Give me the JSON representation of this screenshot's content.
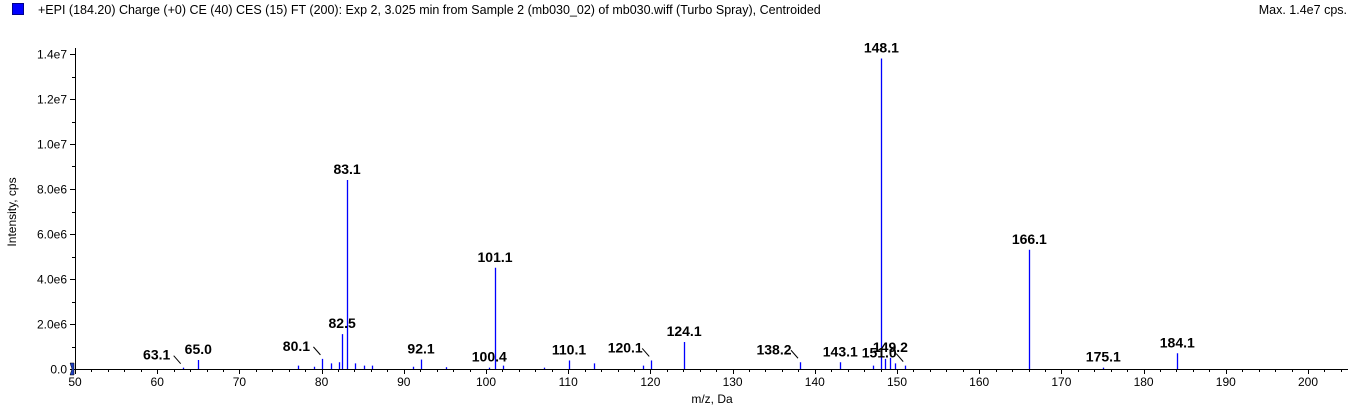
{
  "header": {
    "title": "+EPI (184.20) Charge (+0) CE (40) CES (15) FT (200): Exp 2, 3.025 min from Sample 2 (mb030_02) of mb030.wiff (Turbo Spray), Centroided",
    "max_label": "Max. 1.4e7 cps.",
    "series_color": "#0000ff"
  },
  "chart_data": {
    "type": "bar",
    "title": "",
    "xlabel": "m/z, Da",
    "ylabel": "Intensity, cps",
    "xlim": [
      50,
      205
    ],
    "ylim": [
      0,
      14000000
    ],
    "x_ticks": [
      50,
      60,
      70,
      80,
      90,
      100,
      110,
      120,
      130,
      140,
      150,
      160,
      170,
      180,
      190,
      200
    ],
    "y_ticks": [
      {
        "value": 0,
        "label": "0.0"
      },
      {
        "value": 2000000,
        "label": "2.0e6"
      },
      {
        "value": 4000000,
        "label": "4.0e6"
      },
      {
        "value": 6000000,
        "label": "6.0e6"
      },
      {
        "value": 8000000,
        "label": "8.0e6"
      },
      {
        "value": 10000000,
        "label": "1.0e7"
      },
      {
        "value": 12000000,
        "label": "1.2e7"
      },
      {
        "value": 14000000,
        "label": "1.4e7"
      }
    ],
    "peaks": [
      {
        "mz": 63.1,
        "intensity": 60000
      },
      {
        "mz": 65.0,
        "intensity": 400000
      },
      {
        "mz": 77.1,
        "intensity": 150000
      },
      {
        "mz": 79.1,
        "intensity": 100000
      },
      {
        "mz": 80.1,
        "intensity": 450000
      },
      {
        "mz": 81.1,
        "intensity": 250000
      },
      {
        "mz": 82.1,
        "intensity": 300000
      },
      {
        "mz": 82.5,
        "intensity": 1550000
      },
      {
        "mz": 83.1,
        "intensity": 8400000
      },
      {
        "mz": 84.1,
        "intensity": 250000
      },
      {
        "mz": 85.1,
        "intensity": 150000
      },
      {
        "mz": 86.1,
        "intensity": 150000
      },
      {
        "mz": 91.1,
        "intensity": 100000
      },
      {
        "mz": 92.1,
        "intensity": 420000
      },
      {
        "mz": 95.1,
        "intensity": 80000
      },
      {
        "mz": 100.4,
        "intensity": 60000
      },
      {
        "mz": 101.1,
        "intensity": 4500000
      },
      {
        "mz": 102.1,
        "intensity": 150000
      },
      {
        "mz": 107.1,
        "intensity": 60000
      },
      {
        "mz": 110.1,
        "intensity": 380000
      },
      {
        "mz": 113.1,
        "intensity": 250000
      },
      {
        "mz": 119.1,
        "intensity": 150000
      },
      {
        "mz": 120.1,
        "intensity": 380000
      },
      {
        "mz": 124.1,
        "intensity": 1200000
      },
      {
        "mz": 138.2,
        "intensity": 300000
      },
      {
        "mz": 143.1,
        "intensity": 300000
      },
      {
        "mz": 147.1,
        "intensity": 150000
      },
      {
        "mz": 148.1,
        "intensity": 13800000
      },
      {
        "mz": 148.6,
        "intensity": 450000
      },
      {
        "mz": 149.2,
        "intensity": 500000
      },
      {
        "mz": 149.8,
        "intensity": 250000
      },
      {
        "mz": 151.0,
        "intensity": 150000
      },
      {
        "mz": 166.1,
        "intensity": 5300000
      },
      {
        "mz": 175.1,
        "intensity": 60000
      },
      {
        "mz": 184.1,
        "intensity": 700000
      }
    ],
    "annotations": [
      {
        "mz": 63.1,
        "label": "63.1",
        "leader": true
      },
      {
        "mz": 65.0,
        "label": "65.0",
        "leader": false
      },
      {
        "mz": 80.1,
        "label": "80.1",
        "leader": true
      },
      {
        "mz": 82.5,
        "label": "82.5",
        "leader": false
      },
      {
        "mz": 83.1,
        "label": "83.1",
        "leader": false
      },
      {
        "mz": 92.1,
        "label": "92.1",
        "leader": false
      },
      {
        "mz": 100.4,
        "label": "100.4",
        "leader": false
      },
      {
        "mz": 101.1,
        "label": "101.1",
        "leader": false
      },
      {
        "mz": 110.1,
        "label": "110.1",
        "leader": false
      },
      {
        "mz": 120.1,
        "label": "120.1",
        "leader": true
      },
      {
        "mz": 124.1,
        "label": "124.1",
        "leader": false
      },
      {
        "mz": 138.2,
        "label": "138.2",
        "leader": true
      },
      {
        "mz": 143.1,
        "label": "143.1",
        "leader": false
      },
      {
        "mz": 148.1,
        "label": "148.1",
        "leader": false
      },
      {
        "mz": 149.2,
        "label": "149.2",
        "leader": false
      },
      {
        "mz": 151.0,
        "label": "151.0",
        "leader": true
      },
      {
        "mz": 166.1,
        "label": "166.1",
        "leader": false
      },
      {
        "mz": 175.1,
        "label": "175.1",
        "leader": false
      },
      {
        "mz": 184.1,
        "label": "184.1",
        "leader": false
      }
    ],
    "grid": false,
    "legend": "top-left"
  }
}
